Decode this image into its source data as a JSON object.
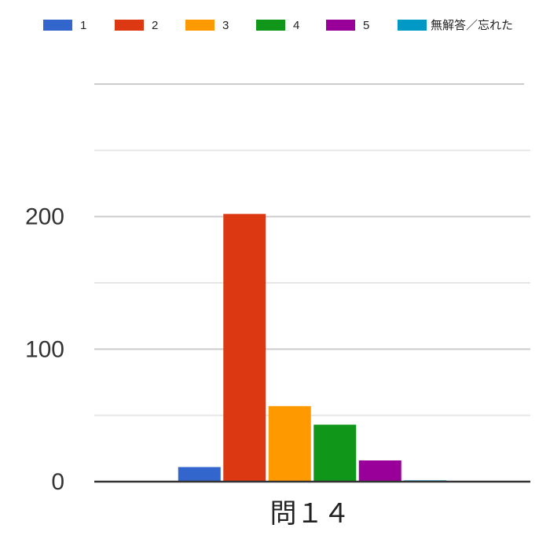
{
  "chart_data": {
    "type": "bar",
    "categories": [
      "問１４"
    ],
    "series": [
      {
        "name": "1",
        "color": "#3366cc",
        "values": [
          11
        ]
      },
      {
        "name": "2",
        "color": "#dc3912",
        "values": [
          202
        ]
      },
      {
        "name": "3",
        "color": "#ff9900",
        "values": [
          57
        ]
      },
      {
        "name": "4",
        "color": "#109618",
        "values": [
          43
        ]
      },
      {
        "name": "5",
        "color": "#990099",
        "values": [
          16
        ]
      },
      {
        "name": "無解答／忘れた",
        "color": "#0099c6",
        "values": [
          1
        ]
      }
    ],
    "ylim": [
      0,
      300
    ],
    "yticks": [
      0,
      100,
      200
    ],
    "minor_gridlines": [
      50,
      150,
      250
    ],
    "grid": true,
    "legend": "top"
  }
}
